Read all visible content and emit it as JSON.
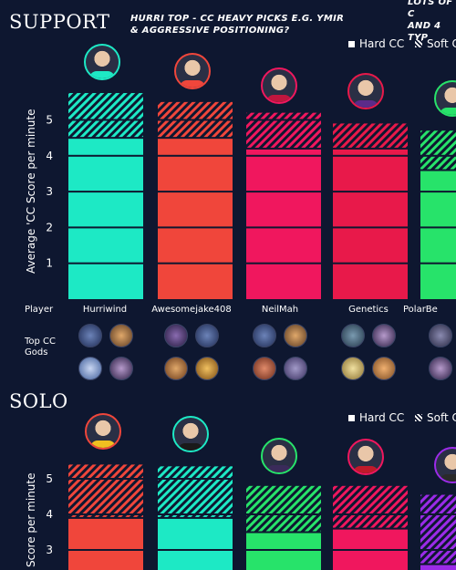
{
  "colors": {
    "background": "#0e1730",
    "teal": "#1de9c5",
    "orange_red": "#f0463b",
    "pink": "#f0175e",
    "crimson": "#e8194a",
    "green": "#27e36a",
    "purple": "#9b2be8"
  },
  "support": {
    "title": "SUPPORT",
    "note_line1": "HURRI TOP - CC HEAVY PICKS E.G. YMIR",
    "note_line2": "& AGGRESSIVE POSITIONING?",
    "legend_hard": "Hard CC",
    "legend_soft": "Soft C",
    "ylabel": "Average 'CC Score per minute",
    "player_row_label": "Player",
    "gods_row_label_1": "Top CC",
    "gods_row_label_2": "Gods",
    "players": [
      "Hurriwind",
      "Awesomejake408",
      "NeilMah",
      "Genetics",
      "PolarBe"
    ]
  },
  "solo": {
    "title": "SOLO",
    "legend_hard": "Hard CC",
    "legend_soft": "Soft C",
    "ylabel": "Score per minute"
  },
  "corner_note_line1": "LOTS OF C",
  "corner_note_line2": "AND 4 TYP",
  "chart_data": [
    {
      "type": "bar",
      "title": "SUPPORT",
      "ylabel": "Average 'CC Score per minute",
      "ylim": [
        0,
        5.5
      ],
      "yticks": [
        1,
        2,
        3,
        4,
        5
      ],
      "categories": [
        "Hurriwind",
        "Awesomejake408",
        "NeilMah",
        "Genetics",
        "PolarBe"
      ],
      "series": [
        {
          "name": "Hard CC",
          "values": [
            4.5,
            4.5,
            4.2,
            4.2,
            3.6
          ]
        },
        {
          "name": "Soft C",
          "values": [
            1.25,
            1.0,
            1.0,
            0.7,
            1.1
          ]
        }
      ],
      "bar_colors": [
        "#1de9c5",
        "#f0463b",
        "#f0175e",
        "#e8194a",
        "#27e36a"
      ],
      "legend": "top-right"
    },
    {
      "type": "bar",
      "title": "SOLO",
      "ylabel": "Score per minute",
      "ylim": [
        2.5,
        5.5
      ],
      "yticks": [
        3,
        4,
        5
      ],
      "categories": [
        "",
        "",
        "",
        "",
        ""
      ],
      "series": [
        {
          "name": "Hard CC",
          "values": [
            3.9,
            3.9,
            3.5,
            3.6,
            2.6
          ]
        },
        {
          "name": "Soft C",
          "values": [
            1.5,
            1.45,
            1.3,
            1.2,
            1.95
          ]
        }
      ],
      "bar_colors": [
        "#f0463b",
        "#1de9c5",
        "#27e36a",
        "#f0175e",
        "#9b2be8"
      ],
      "legend": "top-right"
    }
  ]
}
